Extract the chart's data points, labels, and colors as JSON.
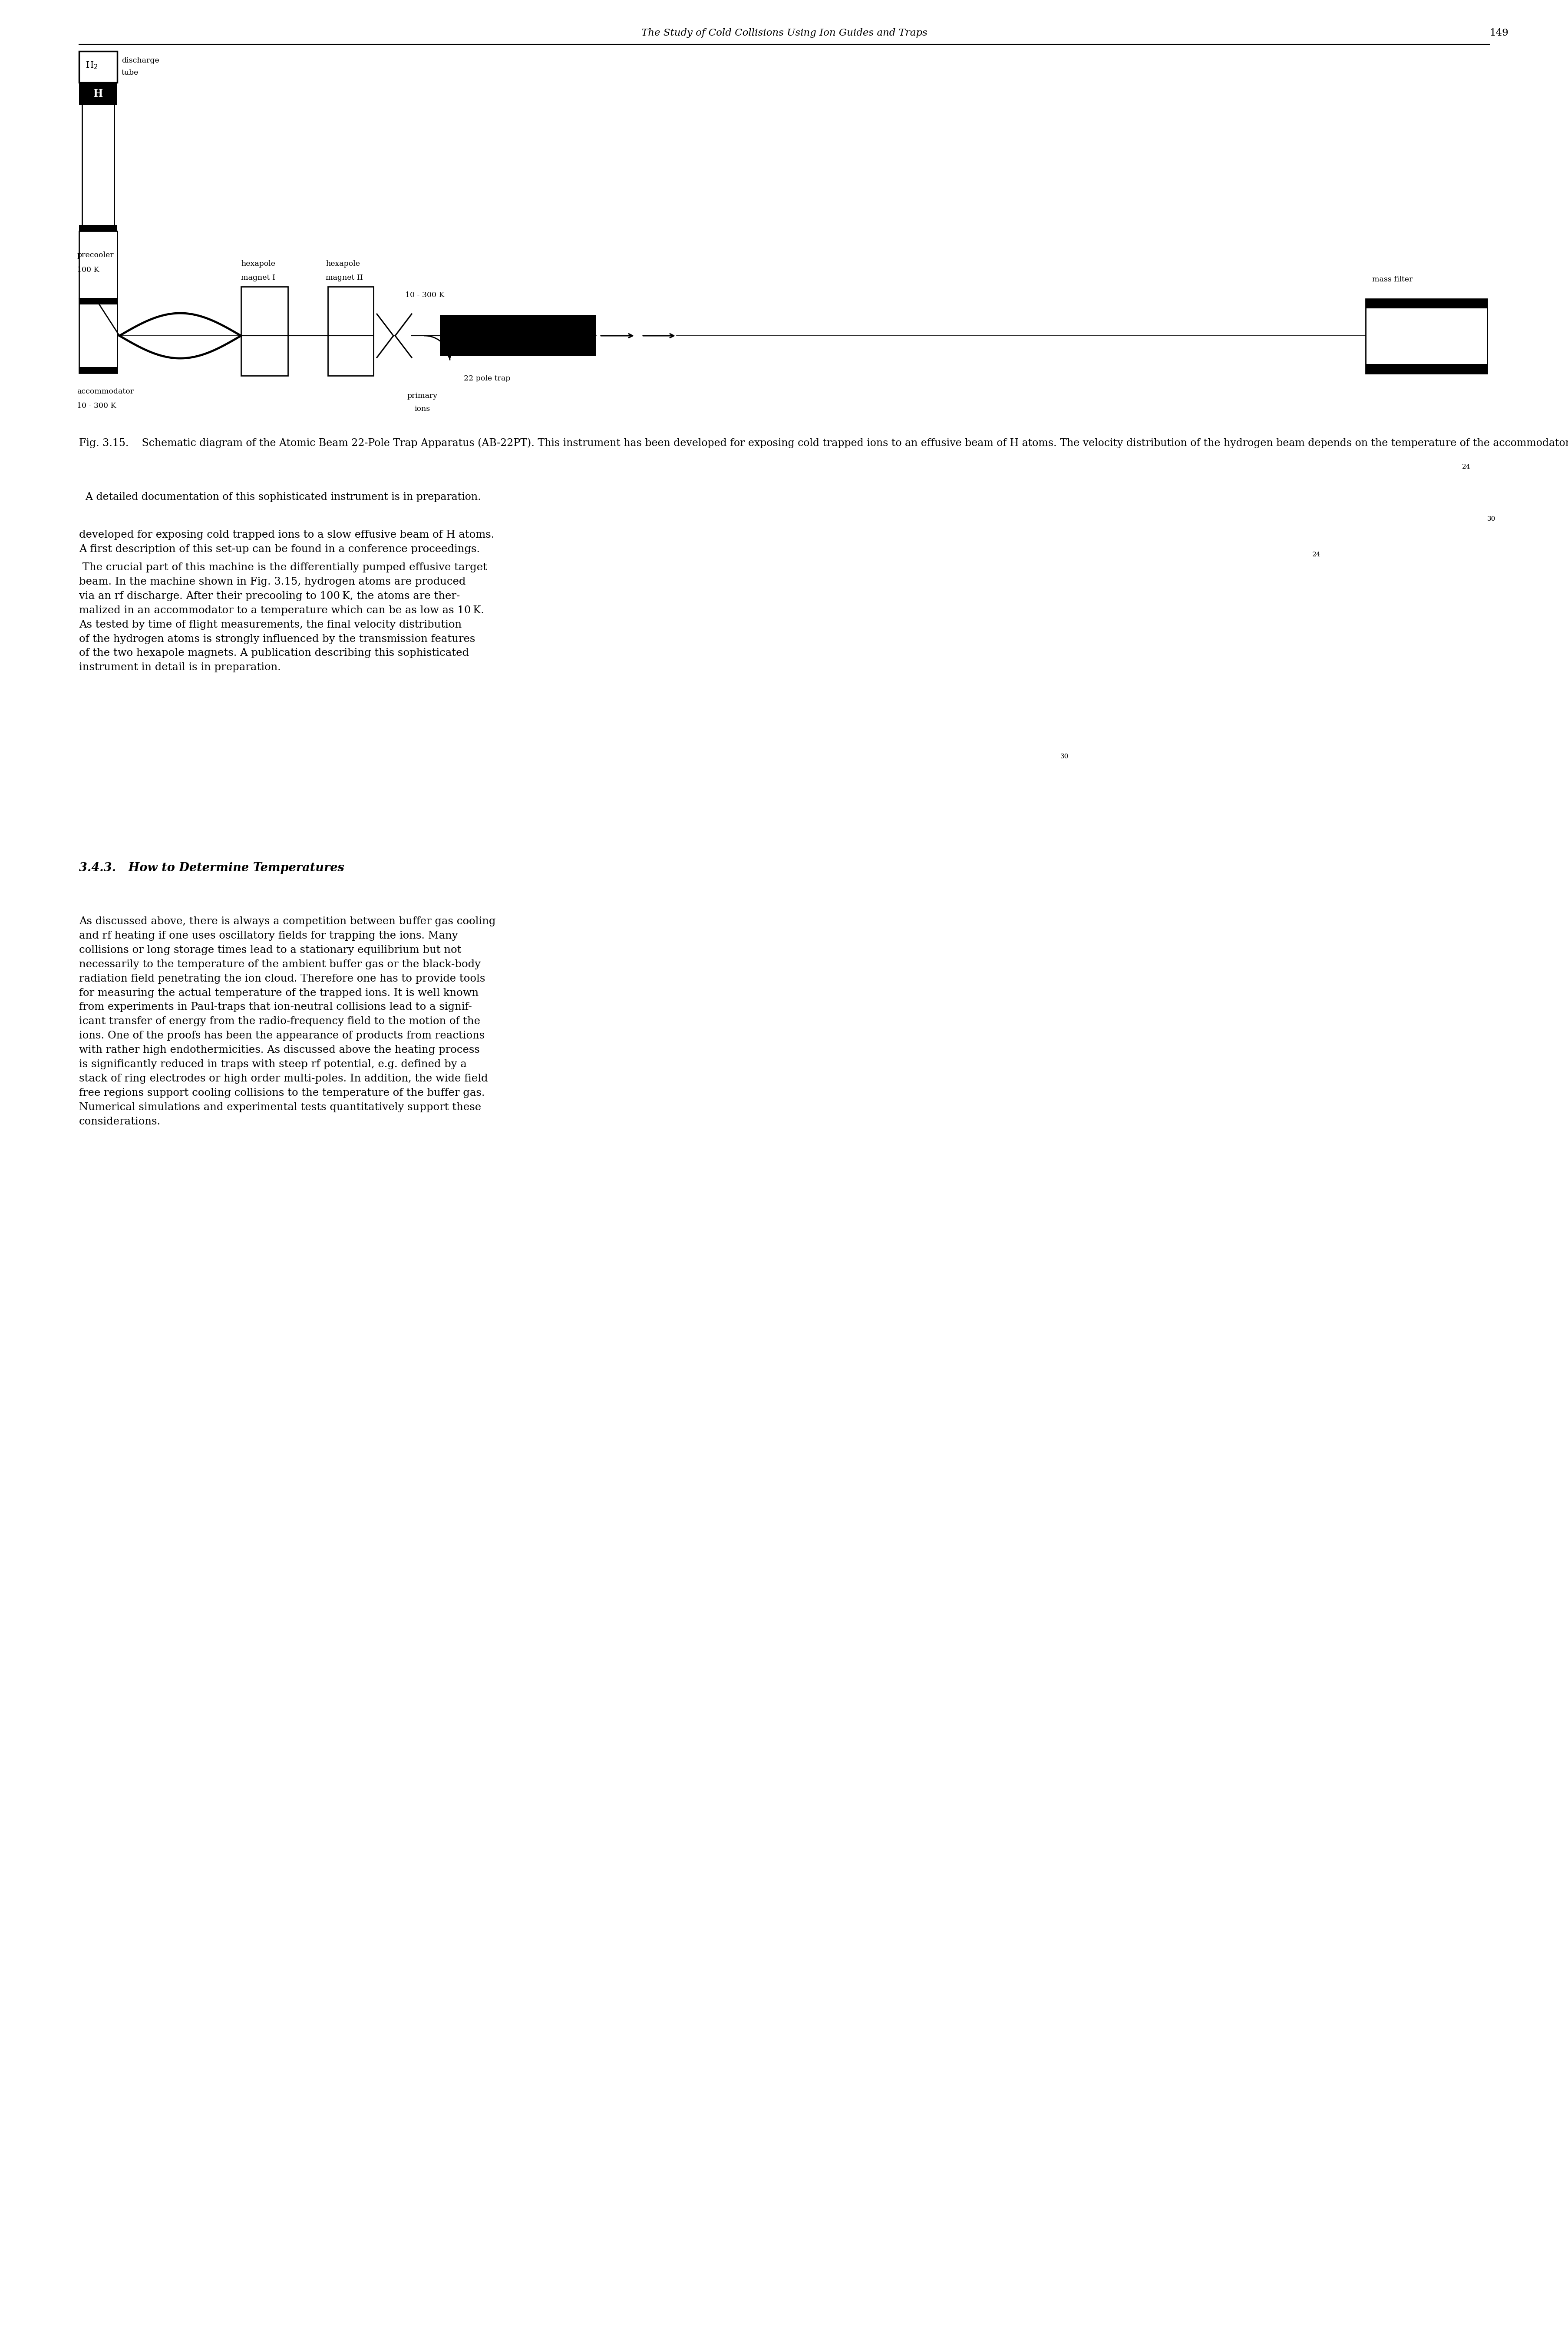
{
  "bg_color": "#ffffff",
  "header_text": "The Study of Cold Collisions Using Ion Guides and Traps",
  "header_page": "149",
  "section_title": "3.4.3.   How to Determine Temperatures",
  "fig_caption": "Fig. 3.15.    Schematic diagram of the Atomic Beam 22-Pole Trap Apparatus (AB-22PT). This instrument has been developed for exposing cold trapped ions to an effusive beam of H atoms. The velocity distribution of the hydrogen beam depends on the temperature of the accommodator and the transmission features of the two hexapole magnets. A short description of this setup has been given recently.",
  "fig_caption_sup1": "24",
  "fig_caption2": "  A detailed documentation of this sophisticated instrument is in preparation.",
  "fig_caption_sup2": "30",
  "body_para1": "developed for exposing cold trapped ions to a slow effusive beam of H atoms.\nA first description of this set-up can be found in a conference proceedings.",
  "body_para1_sup": "24",
  "body_para2": " The crucial part of this machine is the differentially pumped effusive target\nbeam. In the machine shown in Fig. 3.15, hydrogen atoms are produced\nvia an rf discharge. After their precooling to 100 K, the atoms are ther-\nmalized in an accommodator to a temperature which can be as low as 10 K.\nAs tested by time of flight measurements, the final velocity distribution\nof the hydrogen atoms is strongly influenced by the transmission features\nof the two hexapole magnets. A publication describing this sophisticated\ninstrument in detail is in preparation.",
  "body_para2_sup": "30",
  "body_para3": "As discussed above, there is always a competition between buffer gas cooling\nand rf heating if one uses oscillatory fields for trapping the ions. Many\ncollisions or long storage times lead to a stationary equilibrium but not\nnecessarily to the temperature of the ambient buffer gas or the black-body\nradiation field penetrating the ion cloud. Therefore one has to provide tools\nfor measuring the actual temperature of the trapped ions. It is well known\nfrom experiments in Paul-traps that ion-neutral collisions lead to a signif-\nicant transfer of energy from the radio-frequency field to the motion of the\nions. One of the proofs has been the appearance of products from reactions\nwith rather high endothermicities. As discussed above the heating process\nis significantly reduced in traps with steep rf potential, e.g. defined by a\nstack of ring electrodes or high order multi-poles. In addition, the wide field\nfree regions support cooling collisions to the temperature of the buffer gas.\nNumerical simulations and experimental tests quantitatively support these\nconsiderations."
}
